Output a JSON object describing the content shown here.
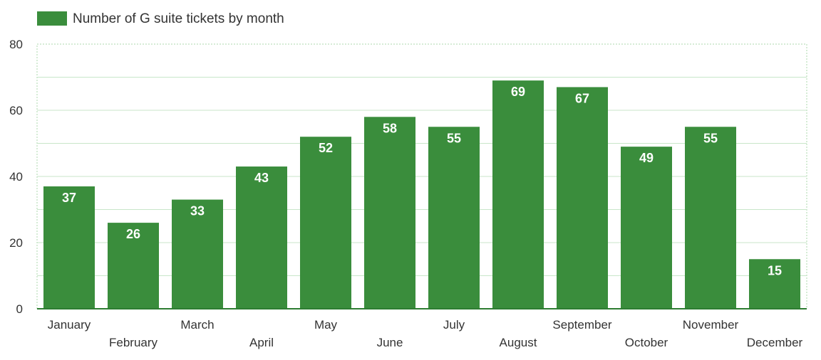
{
  "chart_data": {
    "type": "bar",
    "legend": {
      "label": "Number of G suite tickets by month",
      "position": "top-left"
    },
    "categories": [
      "January",
      "February",
      "March",
      "April",
      "May",
      "June",
      "July",
      "August",
      "September",
      "October",
      "November",
      "December"
    ],
    "series": [
      {
        "name": "Number of G suite tickets by month",
        "values": [
          37,
          26,
          33,
          43,
          52,
          58,
          55,
          69,
          67,
          49,
          55,
          15
        ],
        "color": "#3a8d3c"
      }
    ],
    "ylim": [
      0,
      80
    ],
    "yticks": [
      0,
      20,
      40,
      60,
      80
    ],
    "grid": true,
    "data_labels": true
  },
  "colors": {
    "bar": "#3a8d3c",
    "grid": "#c8e6c9",
    "axis": "#2e7d32",
    "text": "#333333",
    "label": "#ffffff"
  }
}
